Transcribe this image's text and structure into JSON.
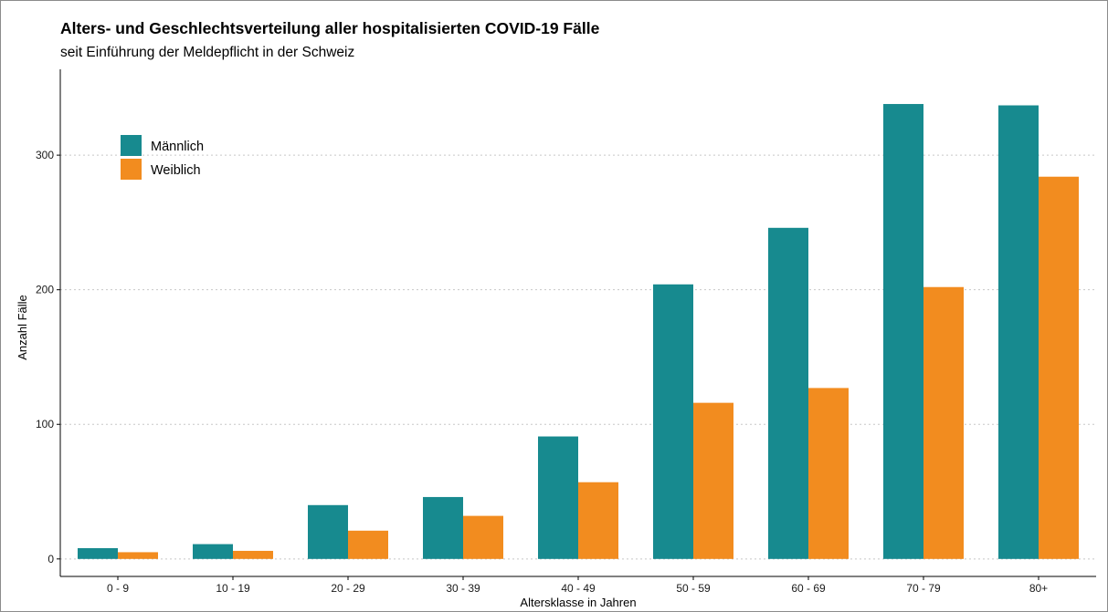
{
  "chart_data": {
    "type": "bar",
    "title": "Alters- und Geschlechtsverteilung aller hospitalisierten COVID-19 Fälle",
    "subtitle": "seit Einführung der Meldepflicht in der Schweiz",
    "xlabel": "Altersklasse in Jahren",
    "ylabel": "Anzahl Fälle",
    "categories": [
      "0 - 9",
      "10 - 19",
      "20 - 29",
      "30 - 39",
      "40 - 49",
      "50 - 59",
      "60 - 69",
      "70 - 79",
      "80+"
    ],
    "series": [
      {
        "name": "Männlich",
        "color": "#178a8f",
        "values": [
          8,
          11,
          40,
          46,
          91,
          204,
          246,
          338,
          337
        ]
      },
      {
        "name": "Weiblich",
        "color": "#f28c1f",
        "values": [
          5,
          6,
          21,
          32,
          57,
          116,
          127,
          202,
          284
        ]
      }
    ],
    "ylim": [
      -13,
      357
    ],
    "yticks": [
      0,
      100,
      200,
      300
    ],
    "grid": "horizontal dotted",
    "legend_position": "top-left"
  }
}
